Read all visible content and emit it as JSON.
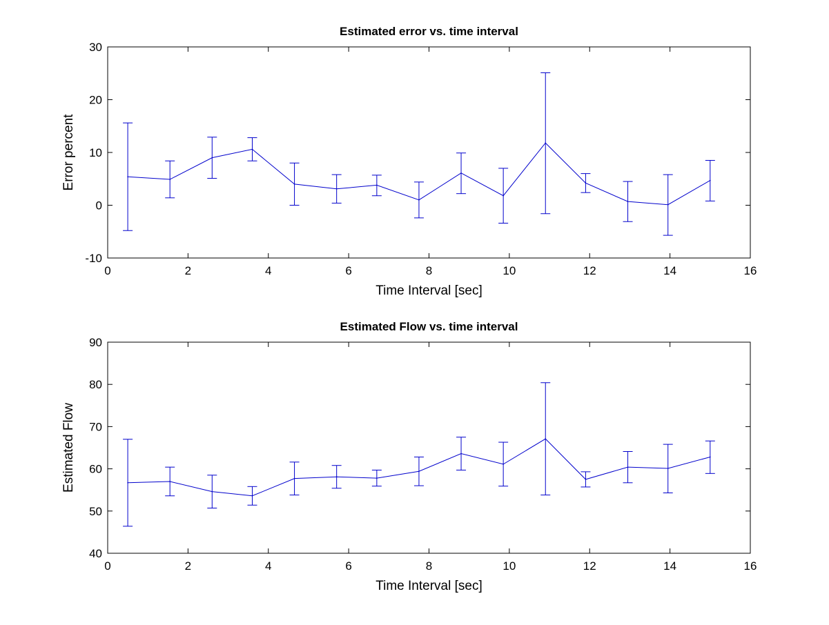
{
  "chart_data": [
    {
      "type": "line",
      "title": "Estimated error vs. time interval",
      "xlabel": "Time Interval [sec]",
      "ylabel": "Error percent",
      "xlim": [
        0,
        16
      ],
      "ylim": [
        -10,
        30
      ],
      "xticks": [
        0,
        2,
        4,
        6,
        8,
        10,
        12,
        14,
        16
      ],
      "yticks": [
        -10,
        0,
        10,
        20,
        30
      ],
      "grid": false,
      "color": "#0000cc",
      "series": [
        {
          "x": [
            0.5,
            1.55,
            2.6,
            3.6,
            4.65,
            5.7,
            6.7,
            7.75,
            8.8,
            9.85,
            10.9,
            11.9,
            12.95,
            13.95,
            15.0
          ],
          "y": [
            5.4,
            4.9,
            9.0,
            10.6,
            4.0,
            3.1,
            3.8,
            1.0,
            6.1,
            1.8,
            11.8,
            4.2,
            0.7,
            0.1,
            4.7
          ],
          "lower": [
            -4.8,
            1.4,
            5.1,
            8.4,
            0.0,
            0.4,
            1.8,
            -2.4,
            2.2,
            -3.4,
            -1.6,
            2.4,
            -3.1,
            -5.7,
            0.8
          ],
          "upper": [
            15.6,
            8.4,
            12.9,
            12.8,
            8.0,
            5.8,
            5.7,
            4.4,
            9.9,
            7.0,
            25.1,
            6.0,
            4.5,
            5.8,
            8.5
          ]
        }
      ]
    },
    {
      "type": "line",
      "title": "Estimated Flow vs. time interval",
      "xlabel": "Time Interval [sec]",
      "ylabel": "Estimated Flow",
      "xlim": [
        0,
        16
      ],
      "ylim": [
        40,
        90
      ],
      "xticks": [
        0,
        2,
        4,
        6,
        8,
        10,
        12,
        14,
        16
      ],
      "yticks": [
        40,
        50,
        60,
        70,
        80,
        90
      ],
      "grid": false,
      "color": "#0000cc",
      "series": [
        {
          "x": [
            0.5,
            1.55,
            2.6,
            3.6,
            4.65,
            5.7,
            6.7,
            7.75,
            8.8,
            9.85,
            10.9,
            11.9,
            12.95,
            13.95,
            15.0
          ],
          "y": [
            56.7,
            57.0,
            54.6,
            53.6,
            57.7,
            58.1,
            57.8,
            59.4,
            63.6,
            61.1,
            67.1,
            57.5,
            60.4,
            60.1,
            62.8
          ],
          "lower": [
            46.4,
            53.6,
            50.7,
            51.4,
            53.8,
            55.4,
            55.9,
            56.0,
            59.7,
            55.9,
            53.8,
            55.7,
            56.7,
            54.3,
            58.9
          ],
          "upper": [
            67.0,
            60.4,
            58.5,
            55.8,
            61.6,
            60.8,
            59.7,
            62.8,
            67.5,
            66.3,
            80.4,
            59.3,
            64.1,
            65.8,
            66.6
          ]
        }
      ]
    }
  ]
}
